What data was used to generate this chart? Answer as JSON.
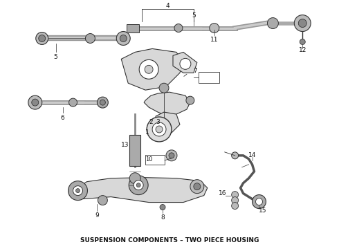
{
  "title": "SUSPENSION COMPONENTS – TWO PIECE HOUSING",
  "title_fontsize": 6.5,
  "background_color": "#ffffff",
  "figure_width": 4.9,
  "figure_height": 3.6,
  "dpi": 100,
  "fg": "#333333",
  "lt": "#888888",
  "lw_thin": 0.5,
  "lw_med": 1.0,
  "lw_thick": 2.0
}
